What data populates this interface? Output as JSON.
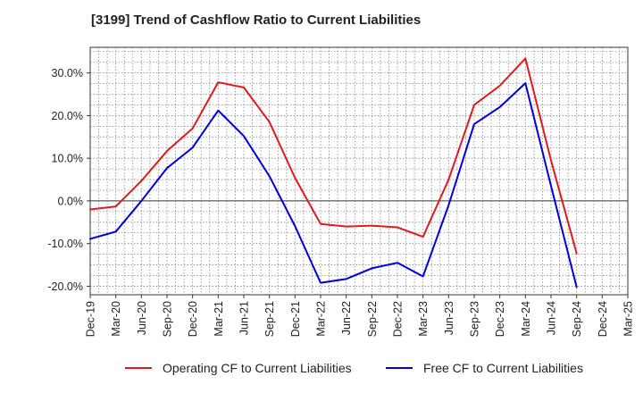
{
  "chart_data": {
    "type": "line",
    "title": "[3199]  Trend of Cashflow Ratio to Current Liabilities",
    "xlabel": "",
    "ylabel": "",
    "x": [
      "Dec-19",
      "Mar-20",
      "Jun-20",
      "Sep-20",
      "Dec-20",
      "Mar-21",
      "Jun-21",
      "Sep-21",
      "Dec-21",
      "Mar-22",
      "Jun-22",
      "Sep-22",
      "Dec-22",
      "Mar-23",
      "Jun-23",
      "Sep-23",
      "Dec-23",
      "Mar-24",
      "Jun-24",
      "Sep-24",
      "Dec-24",
      "Mar-25"
    ],
    "ylim": [
      -22,
      36
    ],
    "yticks": [
      -20,
      -10,
      0,
      10,
      20,
      30
    ],
    "ytick_labels": [
      "-20.0%",
      "-10.0%",
      "0.0%",
      "10.0%",
      "20.0%",
      "30.0%"
    ],
    "grid": true,
    "legend_position": "bottom",
    "series": [
      {
        "name": "Operating CF to Current Liabilities",
        "color": "#e31a1c",
        "values": [
          -2.0,
          -1.3,
          4.7,
          11.7,
          17.0,
          27.8,
          26.6,
          18.5,
          5.4,
          -5.4,
          -6.0,
          -5.8,
          -6.2,
          -8.4,
          5.0,
          22.5,
          27.0,
          33.4,
          9.5,
          -12.3,
          null,
          null
        ]
      },
      {
        "name": "Free CF to Current Liabilities",
        "color": "#0000e0",
        "values": [
          -8.9,
          -7.2,
          0.0,
          7.7,
          12.5,
          21.2,
          15.2,
          5.8,
          -5.9,
          -19.2,
          -18.3,
          -15.8,
          -14.5,
          -17.7,
          -1.0,
          18.0,
          22.0,
          27.6,
          3.5,
          -20.2,
          null,
          null
        ]
      }
    ]
  }
}
